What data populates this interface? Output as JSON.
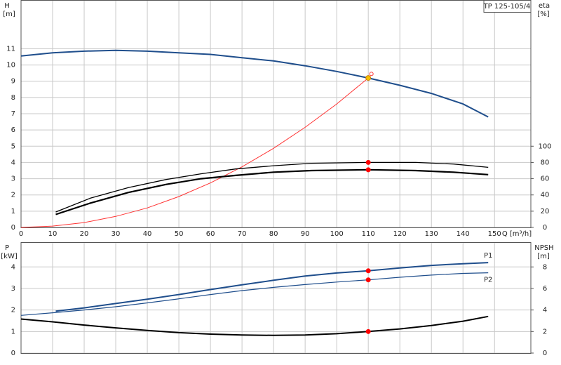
{
  "chart_data": [
    {
      "type": "line",
      "title": "TP 125-105/4",
      "ylabel": "H",
      "yunit": "[m]",
      "y2label": "eta",
      "y2unit": "[%]",
      "xlabel": "Q [m³/h]",
      "xlim": [
        0,
        161.5
      ],
      "xticks": [
        0,
        10,
        20,
        30,
        40,
        50,
        60,
        70,
        80,
        90,
        100,
        110,
        120,
        130,
        140,
        150
      ],
      "ylim": [
        0,
        14
      ],
      "yticks": [
        0,
        1,
        2,
        3,
        4,
        5,
        6,
        7,
        8,
        9,
        10,
        11
      ],
      "y2lim": [
        0,
        280
      ],
      "y2ticks": [
        0,
        20,
        40,
        60,
        80,
        100
      ],
      "grid": true,
      "show_xtick_labels": true,
      "series": [
        {
          "color": "#1f4e8c",
          "width": 2,
          "x": [
            0,
            10,
            20,
            30,
            40,
            50,
            60,
            70,
            80,
            90,
            100,
            110,
            120,
            130,
            140,
            148
          ],
          "values": [
            10.55,
            10.75,
            10.85,
            10.9,
            10.85,
            10.75,
            10.65,
            10.45,
            10.25,
            9.95,
            9.6,
            9.2,
            8.75,
            8.25,
            7.6,
            6.8
          ]
        },
        {
          "color": "#ff3333",
          "width": 1,
          "x": [
            0,
            10,
            20,
            30,
            40,
            50,
            60,
            70,
            80,
            90,
            100,
            110
          ],
          "values": [
            0,
            0.08,
            0.3,
            0.68,
            1.2,
            1.9,
            2.74,
            3.73,
            4.87,
            6.16,
            7.6,
            9.2
          ]
        },
        {
          "color": "#000000",
          "width": 1.3,
          "axis": "y2",
          "x": [
            11,
            22,
            34,
            46,
            57,
            68,
            80,
            92,
            110,
            125,
            137,
            148
          ],
          "values": [
            19,
            36,
            49,
            59,
            66,
            72,
            76,
            79,
            80,
            80,
            78,
            74
          ]
        },
        {
          "color": "#000000",
          "width": 2.2,
          "axis": "y2",
          "x": [
            11,
            22,
            34,
            46,
            57,
            68,
            80,
            92,
            110,
            125,
            137,
            148
          ],
          "values": [
            16,
            30,
            43,
            53,
            60,
            64,
            68,
            70,
            71,
            70,
            68,
            65
          ]
        },
        {
          "color": "#f5c000",
          "marker": "dot",
          "x": [
            110
          ],
          "values": [
            9.2
          ]
        },
        {
          "color": "#ff3333",
          "marker": "ring",
          "x": [
            111
          ],
          "values": [
            9.45
          ]
        },
        {
          "color": "#ff0000",
          "marker": "dot",
          "axis": "y2",
          "x": [
            110,
            110
          ],
          "values": [
            80,
            71
          ]
        }
      ]
    },
    {
      "type": "line",
      "ylabel": "P",
      "yunit": "[kW]",
      "y2label": "NPSH",
      "y2unit": "[m]",
      "xlim": [
        0,
        161.5
      ],
      "xticks": [
        0,
        10,
        20,
        30,
        40,
        50,
        60,
        70,
        80,
        90,
        100,
        110,
        120,
        130,
        140,
        150
      ],
      "ylim": [
        0,
        5.15
      ],
      "yticks": [
        0,
        1,
        2,
        3,
        4
      ],
      "y2lim": [
        0,
        10.3
      ],
      "y2ticks": [
        0,
        2,
        4,
        6,
        8
      ],
      "grid": true,
      "show_xtick_labels": false,
      "series": [
        {
          "name": "P1",
          "label_side": "above",
          "color": "#1f4e8c",
          "width": 2,
          "x": [
            11,
            20,
            30,
            40,
            50,
            60,
            70,
            80,
            90,
            100,
            110,
            120,
            130,
            140,
            148
          ],
          "values": [
            1.95,
            2.1,
            2.3,
            2.5,
            2.72,
            2.95,
            3.17,
            3.38,
            3.58,
            3.72,
            3.82,
            3.95,
            4.07,
            4.15,
            4.2
          ]
        },
        {
          "name": "P2",
          "label_side": "below",
          "color": "#1f4e8c",
          "width": 1.2,
          "x": [
            0,
            10,
            20,
            30,
            40,
            50,
            60,
            70,
            80,
            90,
            100,
            110,
            120,
            130,
            140,
            148
          ],
          "values": [
            1.75,
            1.87,
            2.0,
            2.15,
            2.33,
            2.52,
            2.72,
            2.9,
            3.05,
            3.18,
            3.3,
            3.4,
            3.52,
            3.62,
            3.7,
            3.73
          ]
        },
        {
          "color": "#000000",
          "width": 2,
          "axis": "y2",
          "x": [
            0,
            10,
            20,
            30,
            40,
            50,
            60,
            70,
            80,
            90,
            100,
            110,
            120,
            130,
            140,
            148
          ],
          "values": [
            3.16,
            2.9,
            2.6,
            2.34,
            2.1,
            1.9,
            1.76,
            1.68,
            1.64,
            1.68,
            1.8,
            2.0,
            2.24,
            2.56,
            2.96,
            3.4
          ]
        },
        {
          "color": "#ff0000",
          "marker": "dot",
          "x": [
            110,
            110
          ],
          "values": [
            3.82,
            3.4
          ]
        },
        {
          "color": "#ff0000",
          "marker": "dot",
          "axis": "y2",
          "x": [
            110
          ],
          "values": [
            2.0
          ]
        }
      ]
    }
  ]
}
